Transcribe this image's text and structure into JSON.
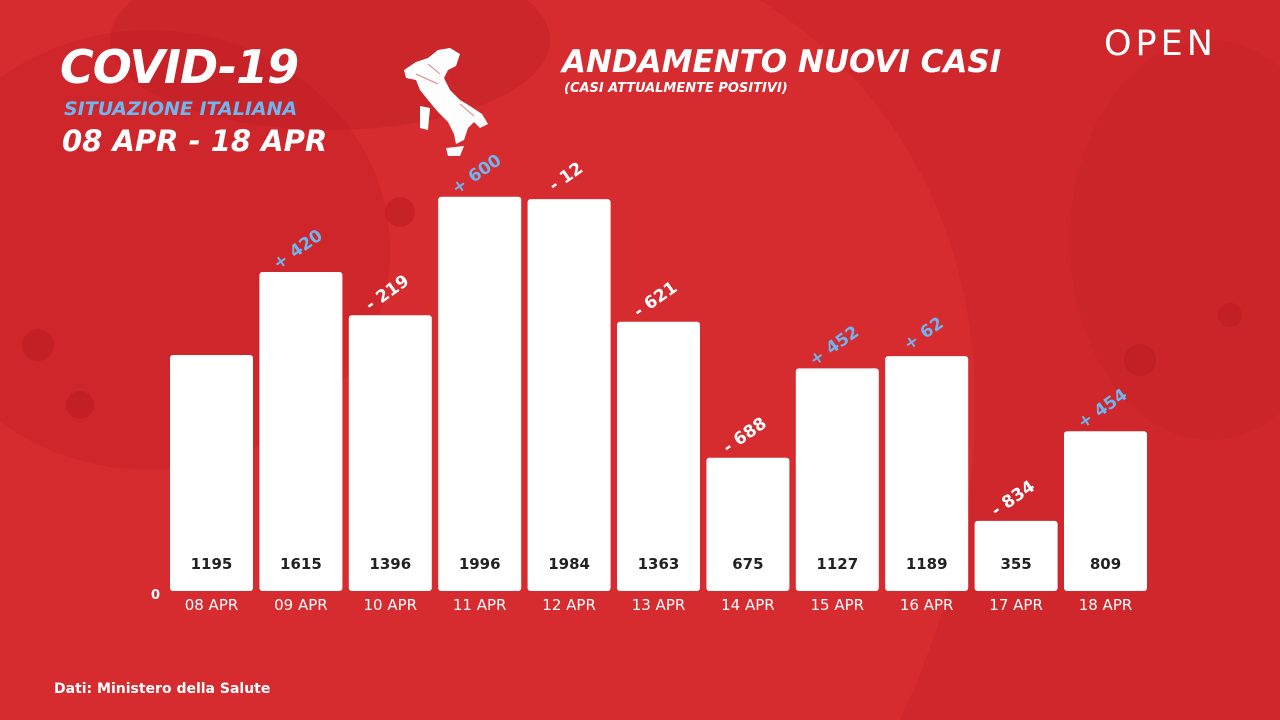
{
  "header": {
    "title": "COVID-19",
    "subtitle": "SITUAZIONE ITALIANA",
    "dates": "08 APR - 18 APR"
  },
  "brand": "OPEN",
  "source": "Dati: Ministero della Salute",
  "colors": {
    "background": "#d62b2f",
    "bar": "#ffffff",
    "positive_change": "#6fb5ef",
    "negative_change": "#ffffff",
    "value_label": "#222222"
  },
  "map_icon": "italy-map-icon",
  "chart_data": {
    "type": "bar",
    "title": "ANDAMENTO NUOVI CASI",
    "subtitle": "(CASI ATTUALMENTE POSITIVI)",
    "xlabel": "",
    "ylabel": "",
    "ylim": [
      0,
      2000
    ],
    "y_tick_labels": [
      "0"
    ],
    "grid": false,
    "categories": [
      "08 APR",
      "09 APR",
      "10 APR",
      "11 APR",
      "12 APR",
      "13 APR",
      "14 APR",
      "15 APR",
      "16 APR",
      "17 APR",
      "18 APR"
    ],
    "values": [
      1195,
      1615,
      1396,
      1996,
      1984,
      1363,
      675,
      1127,
      1189,
      355,
      809
    ],
    "changes": [
      "",
      "+ 420",
      "- 219",
      "+ 600",
      "- 12",
      "- 621",
      "- 688",
      "+ 452",
      "+ 62",
      "- 834",
      "+ 454"
    ]
  }
}
